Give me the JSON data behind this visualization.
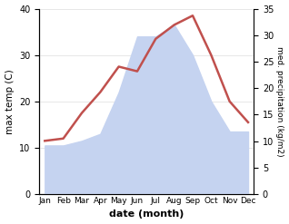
{
  "months": [
    "Jan",
    "Feb",
    "Mar",
    "Apr",
    "May",
    "Jun",
    "Jul",
    "Aug",
    "Sep",
    "Oct",
    "Nov",
    "Dec"
  ],
  "temperature": [
    11.5,
    12.0,
    17.5,
    22.0,
    27.5,
    26.5,
    33.5,
    36.5,
    38.5,
    30.0,
    20.0,
    15.5
  ],
  "precipitation_display": [
    10.5,
    10.5,
    11.5,
    13.0,
    22.0,
    34.0,
    34.0,
    36.5,
    30.0,
    20.0,
    13.5,
    13.5
  ],
  "temp_color": "#c0504d",
  "precip_fill_color": "#c5d3f0",
  "temp_ylim": [
    0,
    40
  ],
  "precip_ylim": [
    0,
    35
  ],
  "temp_yticks": [
    0,
    10,
    20,
    30,
    40
  ],
  "precip_yticks": [
    0,
    5,
    10,
    15,
    20,
    25,
    30,
    35
  ],
  "xlabel": "date (month)",
  "ylabel_left": "max temp (C)",
  "ylabel_right": "med. precipitation (kg/m2)",
  "background_color": "#ffffff"
}
